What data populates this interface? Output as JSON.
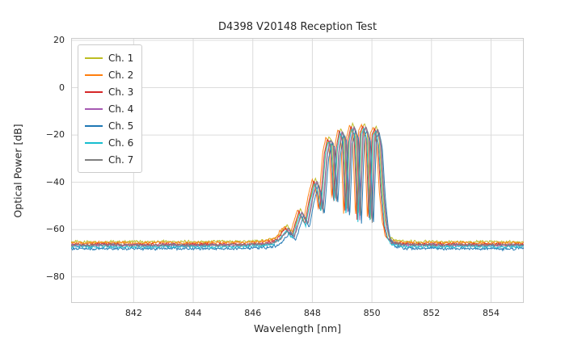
{
  "chart_data": {
    "type": "line",
    "title": "D4398 V20148 Reception Test",
    "xlabel": "Wavelength [nm]",
    "ylabel": "Optical Power [dB]",
    "xlim": [
      839.9,
      855.1
    ],
    "ylim": [
      -91,
      21
    ],
    "xtick_values": [
      842,
      844,
      846,
      848,
      850,
      852,
      854
    ],
    "xtick_labels": [
      "842",
      "844",
      "846",
      "848",
      "850",
      "852",
      "854"
    ],
    "ytick_values": [
      20,
      0,
      -20,
      -40,
      -60,
      -80
    ],
    "ytick_labels": [
      "20",
      "0",
      "−20",
      "−40",
      "−60",
      "−80"
    ],
    "grid": true,
    "legend_position": "upper left",
    "noise_floor_db": -66.5,
    "envelope": [
      [
        839.9,
        -66.4
      ],
      [
        840.5,
        -66.6
      ],
      [
        841.0,
        -66.3
      ],
      [
        841.5,
        -66.5
      ],
      [
        842.0,
        -66.4
      ],
      [
        842.5,
        -66.6
      ],
      [
        843.0,
        -66.3
      ],
      [
        843.5,
        -66.5
      ],
      [
        844.0,
        -66.4
      ],
      [
        844.5,
        -66.5
      ],
      [
        845.0,
        -66.3
      ],
      [
        845.5,
        -66.4
      ],
      [
        846.0,
        -66.2
      ],
      [
        846.4,
        -66.0
      ],
      [
        846.7,
        -65.2
      ],
      [
        846.9,
        -63.5
      ],
      [
        847.05,
        -61.0
      ],
      [
        847.15,
        -59.5
      ],
      [
        847.25,
        -61.5
      ],
      [
        847.35,
        -62.5
      ],
      [
        847.5,
        -56.5
      ],
      [
        847.6,
        -52.5
      ],
      [
        847.7,
        -55.0
      ],
      [
        847.8,
        -57.5
      ],
      [
        847.95,
        -47.0
      ],
      [
        848.1,
        -39.5
      ],
      [
        848.2,
        -43.0
      ],
      [
        848.3,
        -52.0
      ],
      [
        848.45,
        -28.0
      ],
      [
        848.55,
        -22.0
      ],
      [
        848.65,
        -23.5
      ],
      [
        848.75,
        -48.0
      ],
      [
        848.85,
        -26.0
      ],
      [
        848.95,
        -18.5
      ],
      [
        849.05,
        -21.0
      ],
      [
        849.15,
        -54.0
      ],
      [
        849.25,
        -22.0
      ],
      [
        849.35,
        -16.5
      ],
      [
        849.45,
        -20.0
      ],
      [
        849.55,
        -56.0
      ],
      [
        849.65,
        -19.0
      ],
      [
        849.75,
        -16.5
      ],
      [
        849.85,
        -21.0
      ],
      [
        849.95,
        -57.0
      ],
      [
        850.05,
        -20.0
      ],
      [
        850.15,
        -17.5
      ],
      [
        850.25,
        -24.0
      ],
      [
        850.35,
        -45.0
      ],
      [
        850.45,
        -58.0
      ],
      [
        850.55,
        -63.5
      ],
      [
        850.7,
        -65.5
      ],
      [
        851.0,
        -66.2
      ],
      [
        851.5,
        -66.4
      ],
      [
        852.0,
        -66.3
      ],
      [
        852.5,
        -66.5
      ],
      [
        853.0,
        -66.3
      ],
      [
        853.5,
        -66.5
      ],
      [
        854.0,
        -66.4
      ],
      [
        854.5,
        -66.5
      ],
      [
        855.1,
        -66.4
      ]
    ],
    "series": [
      {
        "name": "Ch. 1",
        "color": "#bcbd22",
        "dx": 0.0,
        "dy": 1.3
      },
      {
        "name": "Ch. 2",
        "color": "#ff7f0e",
        "dx": -0.1,
        "dy": 0.8
      },
      {
        "name": "Ch. 3",
        "color": "#d62728",
        "dx": -0.05,
        "dy": 0.1
      },
      {
        "name": "Ch. 4",
        "color": "#a65ab2",
        "dx": 0.04,
        "dy": -0.2
      },
      {
        "name": "Ch. 5",
        "color": "#1f77b4",
        "dx": 0.1,
        "dy": -1.6
      },
      {
        "name": "Ch. 6",
        "color": "#17becf",
        "dx": -0.02,
        "dy": -0.8
      },
      {
        "name": "Ch. 7",
        "color": "#7f7f7f",
        "dx": 0.06,
        "dy": -0.1
      }
    ],
    "colors": {
      "grid": "#dcdcdc",
      "spine": "#cccccc",
      "text": "#262626",
      "background": "#ffffff"
    }
  }
}
